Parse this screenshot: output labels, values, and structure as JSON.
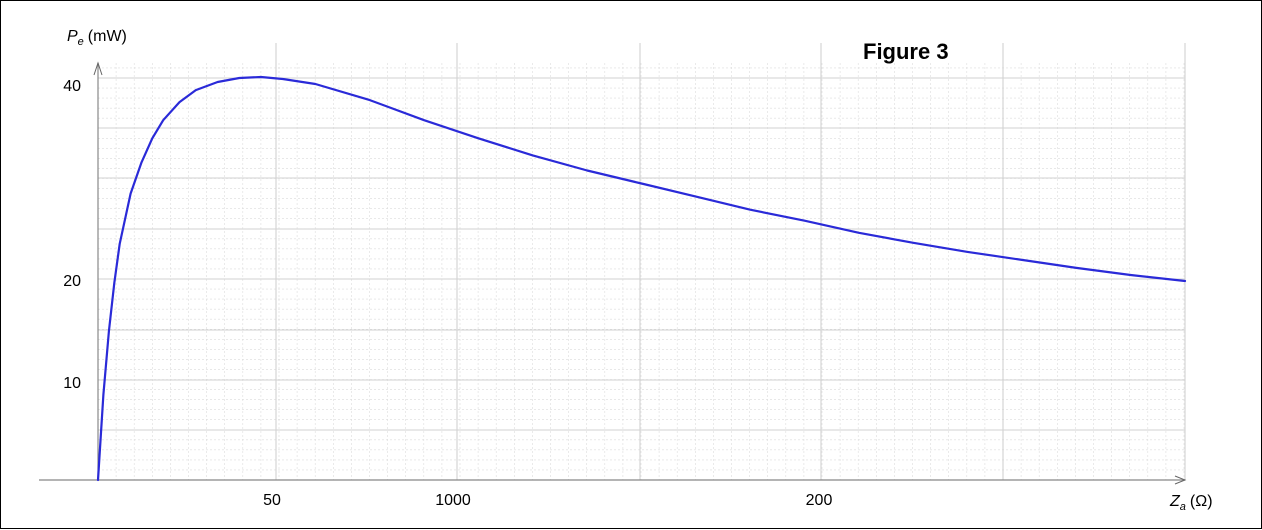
{
  "chart_data": {
    "type": "line",
    "title": "Figure 3",
    "ylabel": {
      "symbol": "P",
      "subscript": "e",
      "unit": "(mW)"
    },
    "xlabel": {
      "symbol": "Z",
      "subscript": "a",
      "unit": "(Ω)"
    },
    "x_tick_labels": [
      "50",
      "1000",
      "200"
    ],
    "y_tick_labels": [
      "40",
      "20",
      "10"
    ],
    "ylim": [
      0,
      40
    ],
    "grid": true,
    "series": [
      {
        "color": "#2a2ad8",
        "x_fraction": [
          0.0,
          0.005,
          0.01,
          0.015,
          0.02,
          0.03,
          0.04,
          0.05,
          0.06,
          0.075,
          0.09,
          0.11,
          0.13,
          0.15,
          0.17,
          0.2,
          0.25,
          0.3,
          0.35,
          0.4,
          0.45,
          0.5,
          0.55,
          0.6,
          0.65,
          0.7,
          0.75,
          0.8,
          0.85,
          0.9,
          0.95,
          1.0
        ],
        "values": [
          0.0,
          8.5,
          14.8,
          19.6,
          23.5,
          28.5,
          31.6,
          34.0,
          35.8,
          37.6,
          38.8,
          39.6,
          40.0,
          40.1,
          39.9,
          39.4,
          37.8,
          35.8,
          34.0,
          32.3,
          30.8,
          29.5,
          28.2,
          26.9,
          25.8,
          24.6,
          23.6,
          22.7,
          21.9,
          21.1,
          20.4,
          19.8
        ]
      }
    ]
  }
}
